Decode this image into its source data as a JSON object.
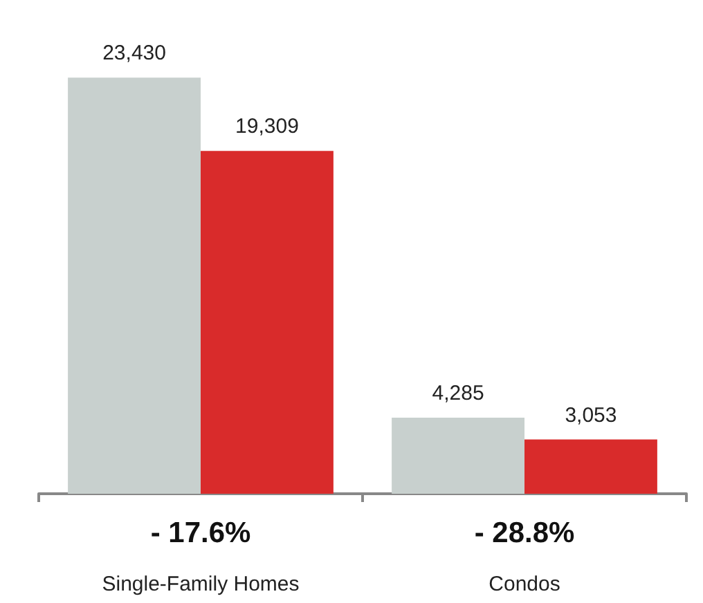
{
  "chart_data": {
    "type": "bar",
    "categories": [
      "Single-Family Homes",
      "Condos"
    ],
    "series": [
      {
        "color": "#c8d0ce",
        "values": [
          23430,
          4285
        ],
        "value_labels": [
          "23,430",
          "4,285"
        ]
      },
      {
        "color": "#d92b2b",
        "values": [
          19309,
          3053
        ],
        "value_labels": [
          "19,309",
          "3,053"
        ]
      }
    ],
    "grid": false,
    "tick_labels": "x",
    "annotations": [
      "- 17.6%",
      "- 28.8%"
    ]
  }
}
